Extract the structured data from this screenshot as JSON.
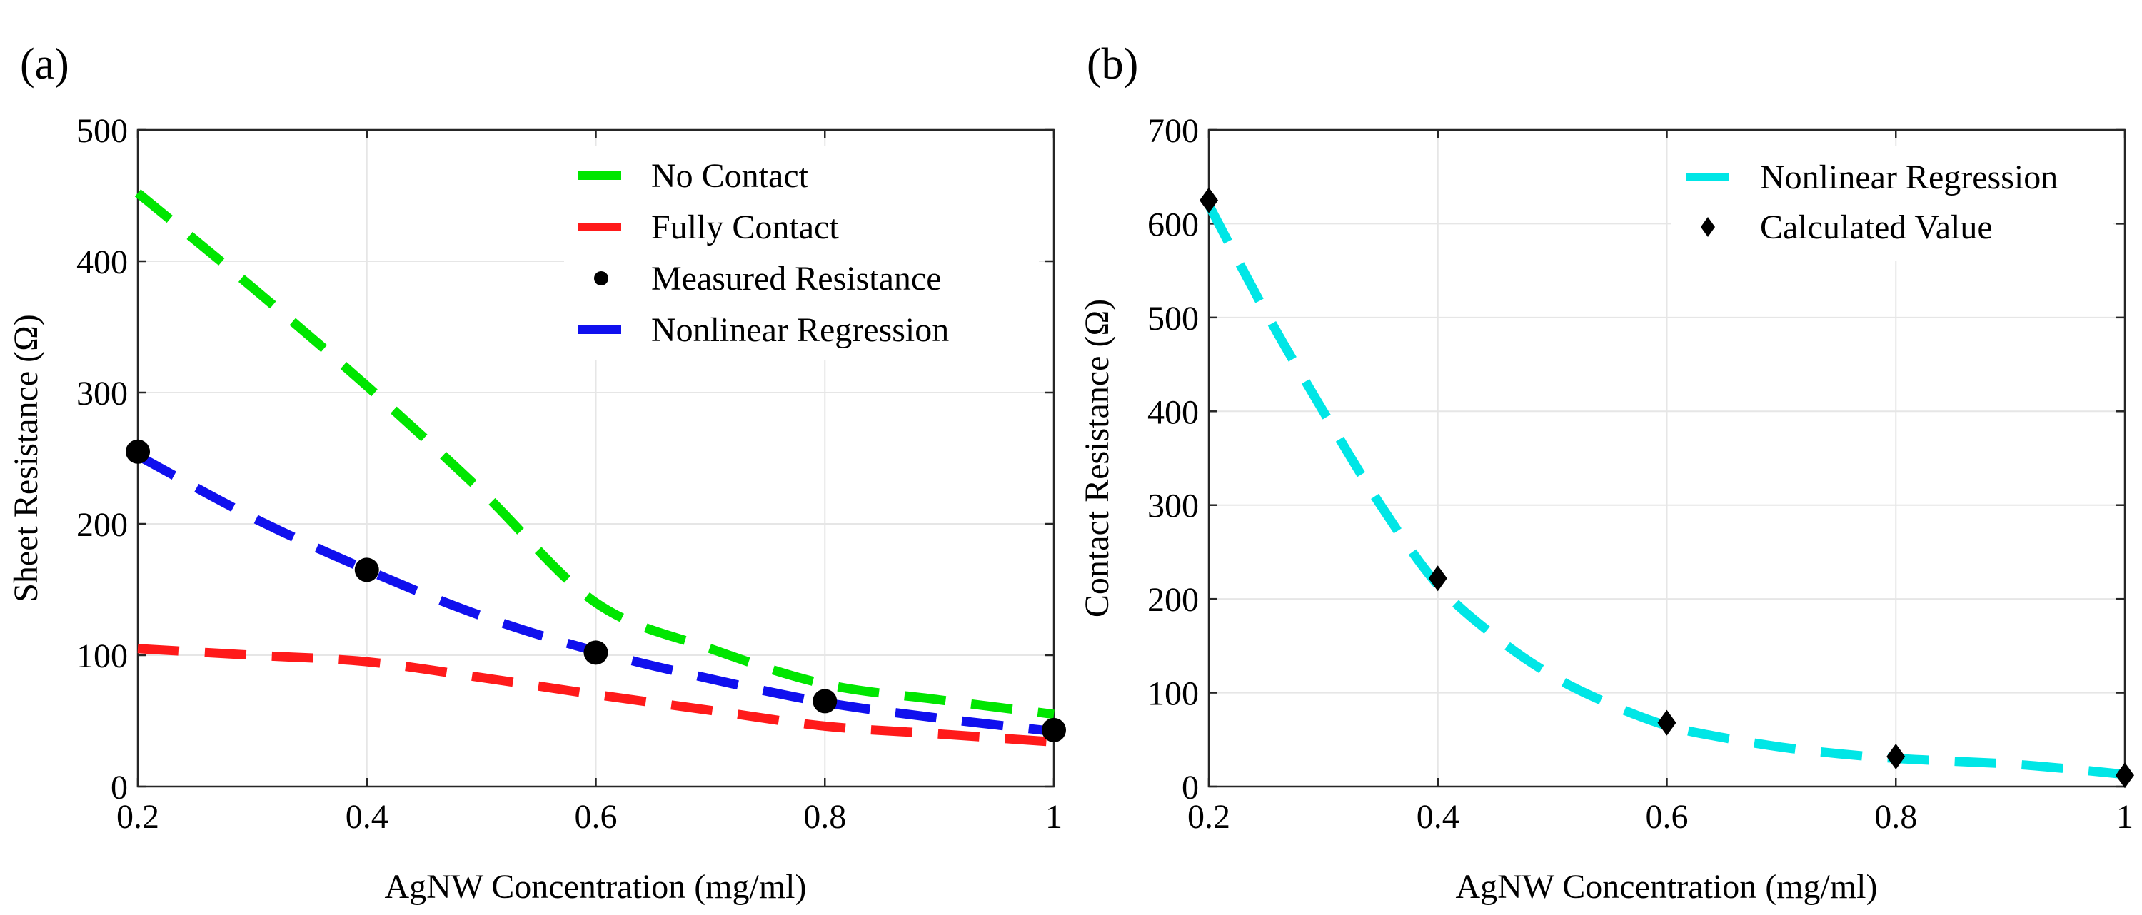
{
  "chart_data": [
    {
      "panel_label": "(a)",
      "type": "line",
      "xlabel": "AgNW Concentration (mg/ml)",
      "ylabel": "Sheet Resistance (Ω)",
      "xlim": [
        0.2,
        1.0
      ],
      "ylim": [
        0,
        500
      ],
      "xticks": [
        0.2,
        0.4,
        0.6,
        0.8,
        1
      ],
      "xtick_labels": [
        "0.2",
        "0.4",
        "0.6",
        "0.8",
        "1"
      ],
      "yticks": [
        0,
        100,
        200,
        300,
        400,
        500
      ],
      "ytick_labels": [
        "0",
        "100",
        "200",
        "300",
        "400",
        "500"
      ],
      "grid": true,
      "legend_position": "top-right",
      "series": [
        {
          "name": "No Contact",
          "style": "dashed",
          "color": "#00e600",
          "x": [
            0.2,
            0.3,
            0.4,
            0.5,
            0.6,
            0.7,
            0.8,
            0.9,
            1.0
          ],
          "y": [
            452,
            380,
            305,
            225,
            140,
            105,
            78,
            66,
            55
          ]
        },
        {
          "name": "Fully Contact",
          "style": "dashed",
          "color": "#ff1a1a",
          "x": [
            0.2,
            0.3,
            0.4,
            0.5,
            0.6,
            0.7,
            0.8,
            0.9,
            1.0
          ],
          "y": [
            105,
            100,
            95,
            83,
            70,
            58,
            46,
            40,
            34
          ]
        },
        {
          "name": "Measured Resistance",
          "style": "markers",
          "marker": "circle",
          "color": "#000000",
          "x": [
            0.2,
            0.4,
            0.6,
            0.8,
            1.0
          ],
          "y": [
            255,
            165,
            102,
            65,
            43
          ]
        },
        {
          "name": "Nonlinear Regression",
          "style": "dashed",
          "color": "#1010ee",
          "x": [
            0.2,
            0.3,
            0.4,
            0.5,
            0.6,
            0.7,
            0.8,
            0.9,
            1.0
          ],
          "y": [
            252,
            205,
            165,
            130,
            103,
            82,
            64,
            52,
            42
          ]
        }
      ]
    },
    {
      "panel_label": "(b)",
      "type": "line",
      "xlabel": "AgNW Concentration (mg/ml)",
      "ylabel": "Contact Resistance (Ω)",
      "xlim": [
        0.2,
        1.0
      ],
      "ylim": [
        0,
        700
      ],
      "xticks": [
        0.2,
        0.4,
        0.6,
        0.8,
        1
      ],
      "xtick_labels": [
        "0.2",
        "0.4",
        "0.6",
        "0.8",
        "1"
      ],
      "yticks": [
        0,
        100,
        200,
        300,
        400,
        500,
        600,
        700
      ],
      "ytick_labels": [
        "0",
        "100",
        "200",
        "300",
        "400",
        "500",
        "600",
        "700"
      ],
      "grid": true,
      "legend_position": "top-right",
      "series": [
        {
          "name": "Nonlinear Regression",
          "style": "dashed",
          "color": "#00e6e6",
          "x": [
            0.2,
            0.25,
            0.3,
            0.35,
            0.4,
            0.45,
            0.5,
            0.55,
            0.6,
            0.65,
            0.7,
            0.75,
            0.8,
            0.85,
            0.9,
            0.95,
            1.0
          ],
          "y": [
            620,
            505,
            400,
            300,
            215,
            160,
            118,
            88,
            65,
            52,
            42,
            35,
            30,
            27,
            24,
            19,
            13
          ]
        },
        {
          "name": "Calculated Value",
          "style": "markers",
          "marker": "diamond",
          "color": "#000000",
          "x": [
            0.2,
            0.4,
            0.6,
            0.8,
            1.0
          ],
          "y": [
            625,
            222,
            68,
            32,
            12
          ]
        }
      ]
    }
  ]
}
